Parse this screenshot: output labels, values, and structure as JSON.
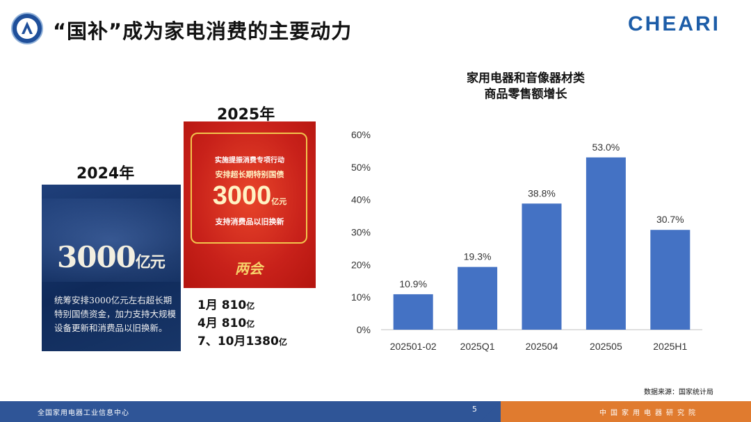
{
  "header": {
    "title": "“国补”成为家电消费的主要动力",
    "brand": "CHEARI"
  },
  "policy": {
    "y2024": {
      "year_label": "2024年",
      "amount": "3000",
      "amount_unit": "亿元",
      "description": "统筹安排3000亿元左右超长期特别国债资金，加力支持大规模设备更新和消费品以旧换新。"
    },
    "y2025": {
      "year_label": "2025年",
      "line1": "实施提振消费专项行动",
      "line2": "安排超长期特别国债",
      "amount": "3000",
      "amount_unit": "亿元",
      "line3": "支持消费品以旧换新",
      "emblem": "两会",
      "allocations": [
        {
          "label": "1月 810",
          "unit": "亿"
        },
        {
          "label": "4月 810",
          "unit": "亿"
        },
        {
          "label": "7、10月1380",
          "unit": "亿"
        }
      ]
    }
  },
  "chart_data": {
    "type": "bar",
    "title": "家用电器和音像器材类商品零售额增长",
    "title_lines": [
      "家用电器和音像器材类",
      "商品零售额增长"
    ],
    "categories": [
      "202501-02",
      "2025Q1",
      "202504",
      "202505",
      "2025H1"
    ],
    "values": [
      10.9,
      19.3,
      38.8,
      53.0,
      30.7
    ],
    "data_labels": [
      "10.9%",
      "19.3%",
      "38.8%",
      "53.0%",
      "30.7%"
    ],
    "ylim": [
      0,
      60
    ],
    "yticks": [
      "0%",
      "10%",
      "20%",
      "30%",
      "40%",
      "50%",
      "60%"
    ],
    "bar_color": "#4472c4",
    "grid": false
  },
  "source_note": "数据来源：国家统计局",
  "footer": {
    "left": "全国家用电器工业信息中心",
    "page": "5",
    "right": "中国家用电器研究院",
    "blue": "#2f5597",
    "orange": "#e07b2f"
  }
}
